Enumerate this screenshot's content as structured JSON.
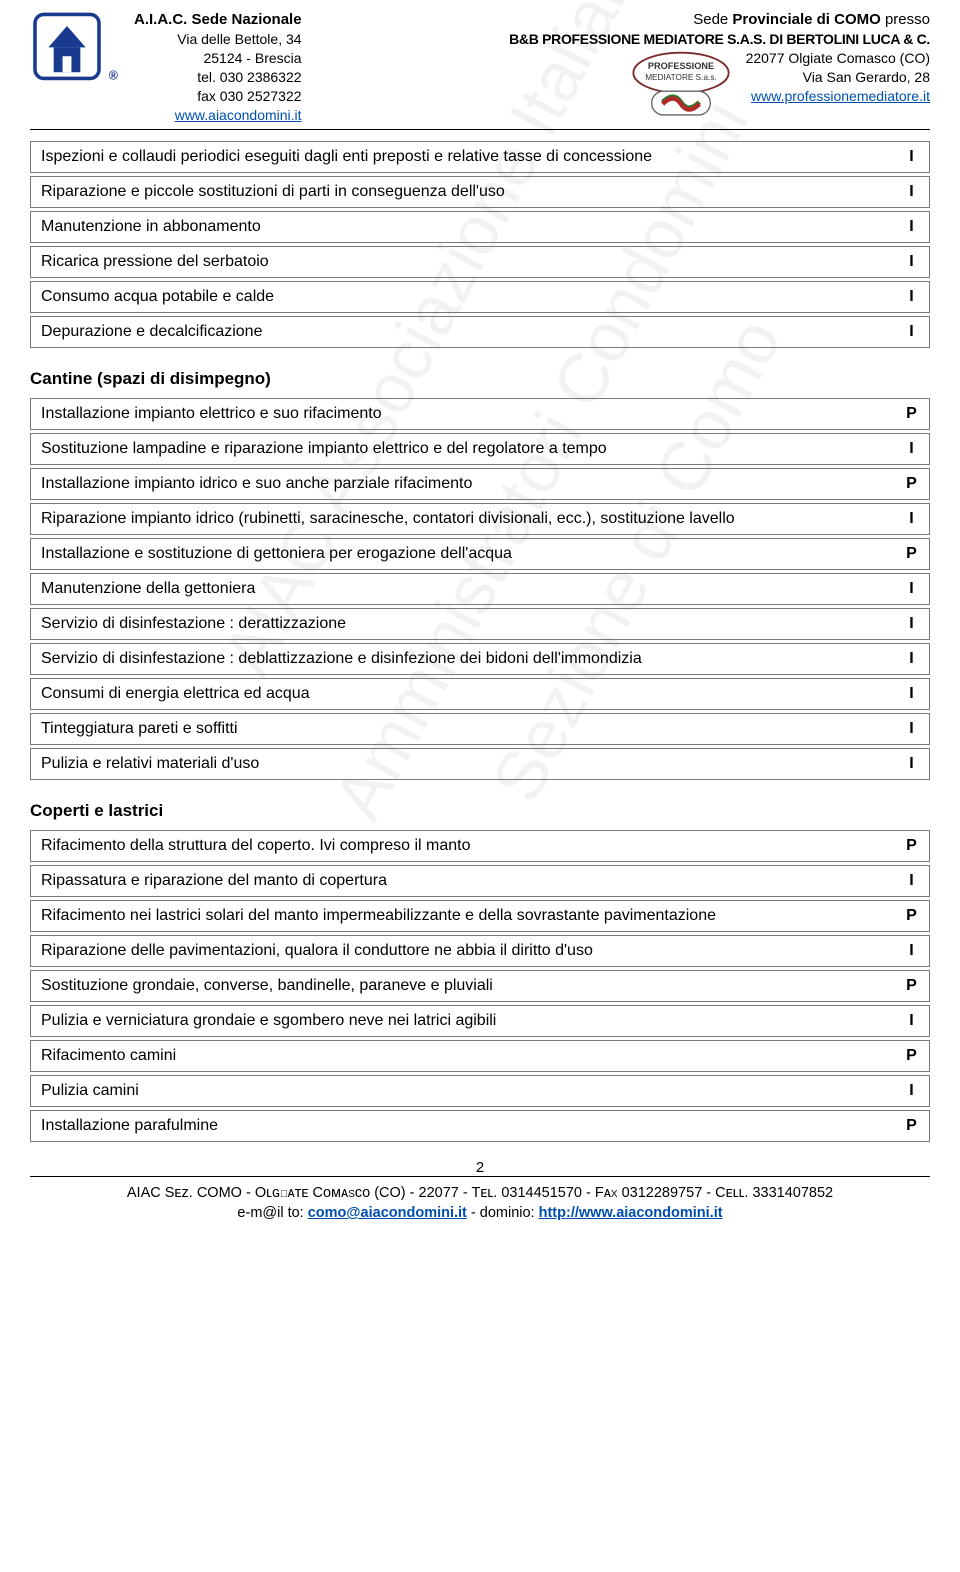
{
  "header": {
    "left": {
      "org": "A.I.A.C. Sede Nazionale",
      "addr1": "Via delle Bettole, 34",
      "addr2": "25124 - Brescia",
      "tel": "tel. 030 2386322",
      "fax": "fax 030 2527322",
      "url": "www.aiacondomini.it"
    },
    "right": {
      "line1_pre": "Sede ",
      "line1_bold": "Provinciale di COMO",
      "line1_post": " presso",
      "line2": "B&B PROFESSIONE MEDIATORE S.A.S. DI BERTOLINI LUCA & C.",
      "addr1": "22077 Olgiate Comasco (CO)",
      "addr2": "Via San Gerardo, 28",
      "url": "www.professionemediatore.it"
    }
  },
  "sections": [
    {
      "title": null,
      "rows": [
        {
          "desc": "Ispezioni e collaudi periodici eseguiti dagli enti preposti e relative tasse di concessione",
          "code": "I"
        },
        {
          "desc": "Riparazione e piccole sostituzioni di parti in conseguenza dell'uso",
          "code": "I"
        },
        {
          "desc": "Manutenzione in abbonamento",
          "code": "I"
        },
        {
          "desc": "Ricarica pressione del serbatoio",
          "code": "I"
        },
        {
          "desc": "Consumo acqua potabile e calde",
          "code": "I"
        },
        {
          "desc": "Depurazione e decalcificazione",
          "code": "I"
        }
      ]
    },
    {
      "title": "Cantine (spazi di disimpegno)",
      "rows": [
        {
          "desc": "Installazione impianto elettrico e suo rifacimento",
          "code": "P"
        },
        {
          "desc": "Sostituzione lampadine e riparazione impianto elettrico e del regolatore a tempo",
          "code": "I"
        },
        {
          "desc": "Installazione impianto idrico e suo anche parziale rifacimento",
          "code": "P"
        },
        {
          "desc": "Riparazione impianto idrico (rubinetti, saracinesche, contatori divisionali, ecc.), sostituzione lavello",
          "code": "I"
        },
        {
          "desc": "Installazione e sostituzione di gettoniera per erogazione dell'acqua",
          "code": "P"
        },
        {
          "desc": "Manutenzione della gettoniera",
          "code": "I"
        },
        {
          "desc": "Servizio di disinfestazione : derattizzazione",
          "code": "I"
        },
        {
          "desc": "Servizio di disinfestazione : deblattizzazione e disinfezione dei bidoni dell'immondizia",
          "code": "I"
        },
        {
          "desc": "Consumi di energia elettrica ed acqua",
          "code": "I"
        },
        {
          "desc": "Tinteggiatura pareti e soffitti",
          "code": "I"
        },
        {
          "desc": "Pulizia e relativi materiali d'uso",
          "code": "I"
        }
      ]
    },
    {
      "title": "Coperti e lastrici",
      "rows": [
        {
          "desc": "Rifacimento della struttura del coperto. Ivi compreso il manto",
          "code": "P"
        },
        {
          "desc": "Ripassatura e riparazione del manto di copertura",
          "code": "I"
        },
        {
          "desc": "Rifacimento nei lastrici solari del manto impermeabilizzante e della sovrastante pavimentazione",
          "code": "P"
        },
        {
          "desc": "Riparazione delle pavimentazioni, qualora il conduttore ne abbia il diritto d'uso",
          "code": "I"
        },
        {
          "desc": "Sostituzione grondaie, converse, bandinelle, paraneve e pluviali",
          "code": "P"
        },
        {
          "desc": "Pulizia e verniciatura grondaie e sgombero neve nei latrici agibili",
          "code": "I"
        },
        {
          "desc": "Rifacimento camini",
          "code": "P"
        },
        {
          "desc": "Pulizia camini",
          "code": "I"
        },
        {
          "desc": "Installazione parafulmine",
          "code": "P"
        }
      ]
    }
  ],
  "page_number": "2",
  "footer": {
    "line1": "AIAC Sᴇᴢ. COMO - Oʟɢɪᴀᴛᴇ Cᴏᴍᴀsᴄᴏ (CO) - 22077 - Tᴇʟ. 0314451570 - Fᴀx 0312289757 - Cᴇʟʟ. 3331407852",
    "line2_pre": "e-m@il to: ",
    "line2_email": "como@aiacondomini.it",
    "line2_mid": " - dominio: ",
    "line2_url": "http://www.aiacondomini.it"
  },
  "watermarks": [
    "AIAC Associazione Italiana",
    "Amministratori Condomini",
    "Sezione di Como"
  ]
}
